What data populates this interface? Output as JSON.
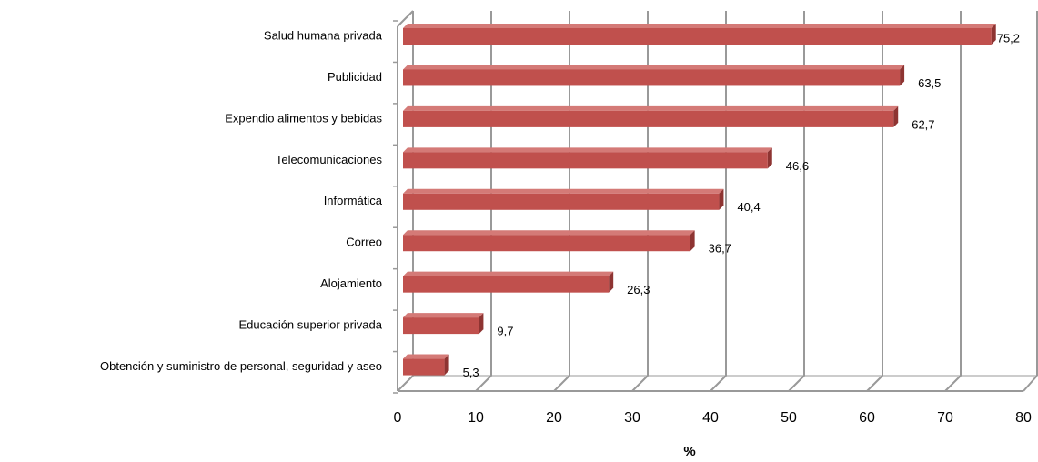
{
  "chart_data": {
    "type": "bar",
    "orientation": "horizontal",
    "categories": [
      "Salud humana privada",
      "Publicidad",
      "Expendio alimentos y bebidas",
      "Telecomunicaciones",
      "Informática",
      "Correo",
      "Alojamiento",
      "Educación superior privada",
      "Obtención y suministro de personal, seguridad y aseo"
    ],
    "values": [
      75.2,
      63.5,
      62.7,
      46.6,
      40.4,
      36.7,
      26.3,
      9.7,
      5.3
    ],
    "value_labels": [
      "75,2",
      "63,5",
      "62,7",
      "46,6",
      "40,4",
      "36,7",
      "26,3",
      "9,7",
      "5,3"
    ],
    "color": "#c0504d",
    "xlim": [
      0,
      80
    ],
    "xticks": [
      0,
      10,
      20,
      30,
      40,
      50,
      60,
      70,
      80
    ],
    "xlabel": "%",
    "grid": true
  }
}
